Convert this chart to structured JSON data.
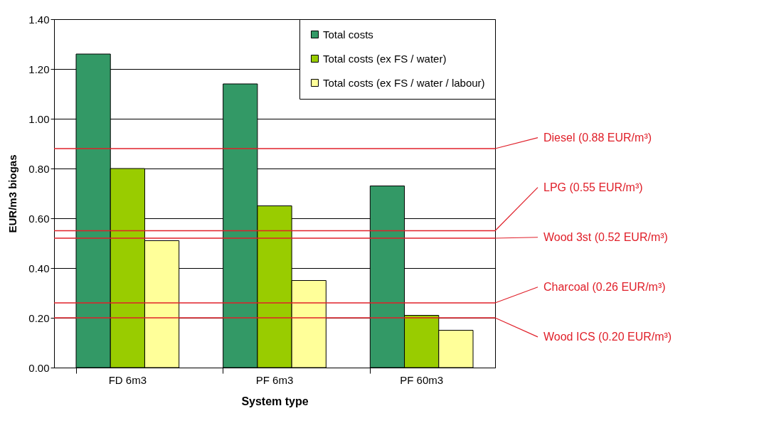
{
  "chart_data": {
    "type": "bar",
    "xlabel": "System type",
    "ylabel": "EUR/m3 biogas",
    "categories": [
      "FD 6m3",
      "PF 6m3",
      "PF 60m3"
    ],
    "series": [
      {
        "name": "Total costs",
        "color": "#339966",
        "values": [
          1.26,
          1.14,
          0.73
        ]
      },
      {
        "name": "Total costs (ex FS / water)",
        "color": "#99cc00",
        "values": [
          0.8,
          0.65,
          0.21
        ]
      },
      {
        "name": "Total costs (ex FS / water / labour)",
        "color": "#ffff99",
        "values": [
          0.51,
          0.35,
          0.15
        ]
      }
    ],
    "ylim": [
      0,
      1.4
    ],
    "yticks": [
      {
        "value": 0,
        "label": "0.00"
      },
      {
        "value": 0.2,
        "label": "0.20"
      },
      {
        "value": 0.4,
        "label": "0.40"
      },
      {
        "value": 0.6,
        "label": "0.60"
      },
      {
        "value": 0.8,
        "label": "0.80"
      },
      {
        "value": 1.0,
        "label": "1.00"
      },
      {
        "value": 1.2,
        "label": "1.20"
      },
      {
        "value": 1.4,
        "label": "1.40"
      }
    ],
    "ref_lines": [
      {
        "axis": "y",
        "value": 0.88,
        "label": "Diesel (0.88 EUR/m³)",
        "color": "#e0202a"
      },
      {
        "axis": "y",
        "value": 0.55,
        "label": "LPG (0.55 EUR/m³)",
        "color": "#e0202a"
      },
      {
        "axis": "y",
        "value": 0.52,
        "label": "Wood 3st (0.52 EUR/m³)",
        "color": "#e0202a"
      },
      {
        "axis": "y",
        "value": 0.26,
        "label": "Charcoal (0.26 EUR/m³)",
        "color": "#e0202a"
      },
      {
        "axis": "y",
        "value": 0.2,
        "label": "Wood ICS (0.20 EUR/m³)",
        "color": "#e0202a"
      }
    ],
    "grid": "y",
    "legend": "top right"
  }
}
